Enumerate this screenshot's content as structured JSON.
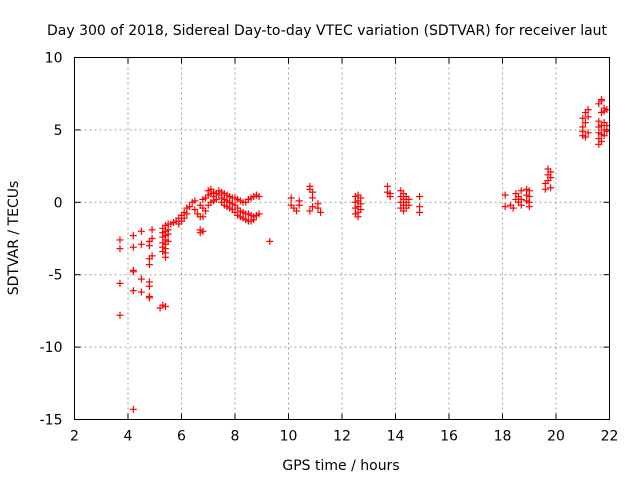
{
  "chart_data": {
    "type": "scatter",
    "title": "Day 300 of 2018, Sidereal Day-to-day VTEC variation (SDTVAR) for receiver laut",
    "xlabel": "GPS time / hours",
    "ylabel": "SDTVAR / TECUs",
    "xlim": [
      2,
      22
    ],
    "ylim": [
      -15,
      10
    ],
    "x_ticks": [
      2,
      4,
      6,
      8,
      10,
      12,
      14,
      16,
      18,
      20,
      22
    ],
    "y_ticks": [
      -15,
      -10,
      -5,
      0,
      5,
      10
    ],
    "x_tick_labels": [
      "2",
      "4",
      "6",
      "8",
      "10",
      "12",
      "14",
      "16",
      "18",
      "20",
      "22"
    ],
    "y_tick_labels": [
      "-15",
      "-10",
      "-5",
      "0",
      "5",
      "10"
    ],
    "grid": true,
    "marker": "+",
    "color": "#ff0000",
    "series": [
      {
        "name": "SDTVAR",
        "points": [
          [
            3.7,
            -2.6
          ],
          [
            3.7,
            -3.2
          ],
          [
            3.7,
            -5.6
          ],
          [
            3.7,
            -7.8
          ],
          [
            4.2,
            -2.3
          ],
          [
            4.2,
            -3.1
          ],
          [
            4.2,
            -4.7
          ],
          [
            4.2,
            -4.8
          ],
          [
            4.2,
            -6.1
          ],
          [
            4.2,
            -14.3
          ],
          [
            4.5,
            -2.0
          ],
          [
            4.5,
            -2.9
          ],
          [
            4.5,
            -5.3
          ],
          [
            4.5,
            -6.2
          ],
          [
            4.8,
            -2.7
          ],
          [
            4.8,
            -3.0
          ],
          [
            4.8,
            -3.9
          ],
          [
            4.8,
            -4.3
          ],
          [
            4.8,
            -5.5
          ],
          [
            4.8,
            -5.8
          ],
          [
            4.8,
            -6.5
          ],
          [
            4.8,
            -6.6
          ],
          [
            4.9,
            -1.9
          ],
          [
            4.9,
            -2.5
          ],
          [
            4.9,
            -3.7
          ],
          [
            5.2,
            -7.3
          ],
          [
            5.3,
            -7.1
          ],
          [
            5.4,
            -7.2
          ],
          [
            5.3,
            -1.8
          ],
          [
            5.3,
            -2.1
          ],
          [
            5.3,
            -2.4
          ],
          [
            5.3,
            -2.8
          ],
          [
            5.3,
            -3.1
          ],
          [
            5.3,
            -3.4
          ],
          [
            5.4,
            -1.6
          ],
          [
            5.4,
            -2.0
          ],
          [
            5.4,
            -2.3
          ],
          [
            5.4,
            -2.6
          ],
          [
            5.4,
            -2.9
          ],
          [
            5.4,
            -3.2
          ],
          [
            5.4,
            -3.5
          ],
          [
            5.4,
            -3.8
          ],
          [
            5.5,
            -1.5
          ],
          [
            5.5,
            -1.9
          ],
          [
            5.5,
            -2.2
          ],
          [
            5.5,
            -2.7
          ],
          [
            5.6,
            -1.5
          ],
          [
            5.7,
            -1.4
          ],
          [
            5.8,
            -1.3
          ],
          [
            5.9,
            -1.1
          ],
          [
            5.9,
            -1.5
          ],
          [
            6.0,
            -0.9
          ],
          [
            6.0,
            -1.3
          ],
          [
            6.1,
            -0.7
          ],
          [
            6.1,
            -1.1
          ],
          [
            6.2,
            -0.4
          ],
          [
            6.2,
            -0.8
          ],
          [
            6.3,
            -0.3
          ],
          [
            6.4,
            0.0
          ],
          [
            6.5,
            0.1
          ],
          [
            6.7,
            -1.9
          ],
          [
            6.7,
            -2.1
          ],
          [
            6.8,
            -2.0
          ],
          [
            6.7,
            -0.2
          ],
          [
            6.8,
            -0.4
          ],
          [
            6.9,
            -0.6
          ],
          [
            6.8,
            0.2
          ],
          [
            6.9,
            0.3
          ],
          [
            7.0,
            0.5
          ],
          [
            7.0,
            0.8
          ],
          [
            7.1,
            0.6
          ],
          [
            7.1,
            0.9
          ],
          [
            7.2,
            0.7
          ],
          [
            7.2,
            0.4
          ],
          [
            7.3,
            0.6
          ],
          [
            7.3,
            0.2
          ],
          [
            7.4,
            0.5
          ],
          [
            7.4,
            0.8
          ],
          [
            7.5,
            0.7
          ],
          [
            7.5,
            0.3
          ],
          [
            7.5,
            0.0
          ],
          [
            7.6,
            0.6
          ],
          [
            7.6,
            0.2
          ],
          [
            7.6,
            -0.2
          ],
          [
            7.7,
            0.5
          ],
          [
            7.7,
            0.1
          ],
          [
            7.7,
            -0.3
          ],
          [
            7.8,
            0.4
          ],
          [
            7.8,
            0.0
          ],
          [
            7.8,
            -0.4
          ],
          [
            7.9,
            0.3
          ],
          [
            7.9,
            -0.1
          ],
          [
            7.9,
            -0.5
          ],
          [
            8.0,
            0.3
          ],
          [
            8.0,
            -0.2
          ],
          [
            8.0,
            -0.7
          ],
          [
            8.1,
            0.2
          ],
          [
            8.1,
            -0.4
          ],
          [
            8.1,
            -0.9
          ],
          [
            8.2,
            0.1
          ],
          [
            8.2,
            -0.6
          ],
          [
            8.2,
            -1.0
          ],
          [
            8.3,
            0.0
          ],
          [
            8.3,
            -0.7
          ],
          [
            8.3,
            -1.1
          ],
          [
            8.4,
            0.0
          ],
          [
            8.4,
            -0.8
          ],
          [
            8.4,
            -1.2
          ],
          [
            8.5,
            0.2
          ],
          [
            8.5,
            -0.8
          ],
          [
            8.5,
            -1.3
          ],
          [
            8.6,
            0.3
          ],
          [
            8.6,
            -0.9
          ],
          [
            8.6,
            -1.3
          ],
          [
            8.7,
            0.4
          ],
          [
            8.7,
            -1.0
          ],
          [
            8.7,
            -1.2
          ],
          [
            8.8,
            0.5
          ],
          [
            8.8,
            -0.9
          ],
          [
            8.9,
            0.4
          ],
          [
            8.9,
            -0.8
          ],
          [
            6.5,
            -0.5
          ],
          [
            6.6,
            -0.8
          ],
          [
            6.7,
            -1.0
          ],
          [
            6.8,
            -1.0
          ],
          [
            7.0,
            -0.2
          ],
          [
            7.1,
            0.0
          ],
          [
            7.2,
            0.1
          ],
          [
            9.3,
            -2.7
          ],
          [
            10.1,
            0.3
          ],
          [
            10.1,
            -0.2
          ],
          [
            10.2,
            -0.4
          ],
          [
            10.3,
            -0.6
          ],
          [
            10.4,
            -0.2
          ],
          [
            10.4,
            0.1
          ],
          [
            10.8,
            1.1
          ],
          [
            10.8,
            0.9
          ],
          [
            10.9,
            0.7
          ],
          [
            10.9,
            0.3
          ],
          [
            10.9,
            -0.3
          ],
          [
            10.8,
            -0.6
          ],
          [
            11.1,
            -0.1
          ],
          [
            11.1,
            -0.4
          ],
          [
            11.2,
            -0.7
          ],
          [
            12.5,
            0.4
          ],
          [
            12.5,
            0.0
          ],
          [
            12.5,
            -0.4
          ],
          [
            12.5,
            -0.8
          ],
          [
            12.6,
            0.5
          ],
          [
            12.6,
            0.1
          ],
          [
            12.6,
            -0.3
          ],
          [
            12.6,
            -0.7
          ],
          [
            12.6,
            -1.0
          ],
          [
            12.7,
            0.3
          ],
          [
            12.7,
            -0.1
          ],
          [
            12.7,
            -0.5
          ],
          [
            13.7,
            0.7
          ],
          [
            13.7,
            1.1
          ],
          [
            13.8,
            0.4
          ],
          [
            13.8,
            0.6
          ],
          [
            14.2,
            0.8
          ],
          [
            14.2,
            0.4
          ],
          [
            14.2,
            0.0
          ],
          [
            14.2,
            -0.4
          ],
          [
            14.3,
            0.6
          ],
          [
            14.3,
            0.2
          ],
          [
            14.3,
            -0.2
          ],
          [
            14.3,
            -0.6
          ],
          [
            14.4,
            0.4
          ],
          [
            14.4,
            0.0
          ],
          [
            14.4,
            -0.4
          ],
          [
            14.5,
            0.2
          ],
          [
            14.5,
            -0.2
          ],
          [
            14.9,
            0.4
          ],
          [
            14.9,
            -0.3
          ],
          [
            14.9,
            -0.7
          ],
          [
            18.1,
            0.5
          ],
          [
            18.1,
            -0.3
          ],
          [
            18.3,
            -0.2
          ],
          [
            18.4,
            -0.4
          ],
          [
            18.5,
            0.6
          ],
          [
            18.5,
            0.2
          ],
          [
            18.6,
            0.4
          ],
          [
            18.6,
            0.0
          ],
          [
            18.7,
            0.8
          ],
          [
            18.7,
            0.2
          ],
          [
            18.7,
            -0.2
          ],
          [
            18.9,
            0.9
          ],
          [
            18.9,
            0.5
          ],
          [
            18.9,
            0.1
          ],
          [
            19.0,
            0.8
          ],
          [
            19.0,
            0.4
          ],
          [
            19.0,
            0.0
          ],
          [
            19.0,
            -0.3
          ],
          [
            19.6,
            0.9
          ],
          [
            19.6,
            1.3
          ],
          [
            19.7,
            1.5
          ],
          [
            19.7,
            1.9
          ],
          [
            19.7,
            2.3
          ],
          [
            19.8,
            1.7
          ],
          [
            19.8,
            2.1
          ],
          [
            19.8,
            1.0
          ],
          [
            21.0,
            4.6
          ],
          [
            21.0,
            5.2
          ],
          [
            21.0,
            5.8
          ],
          [
            21.0,
            4.9
          ],
          [
            21.1,
            4.5
          ],
          [
            21.1,
            5.5
          ],
          [
            21.1,
            6.2
          ],
          [
            21.2,
            4.8
          ],
          [
            21.2,
            5.9
          ],
          [
            21.2,
            6.4
          ],
          [
            21.6,
            4.0
          ],
          [
            21.6,
            4.4
          ],
          [
            21.6,
            4.8
          ],
          [
            21.6,
            5.2
          ],
          [
            21.6,
            5.6
          ],
          [
            21.6,
            6.8
          ],
          [
            21.7,
            4.2
          ],
          [
            21.7,
            4.7
          ],
          [
            21.7,
            5.3
          ],
          [
            21.7,
            6.2
          ],
          [
            21.7,
            7.0
          ],
          [
            21.7,
            7.1
          ],
          [
            21.8,
            4.6
          ],
          [
            21.8,
            5.0
          ],
          [
            21.8,
            5.5
          ],
          [
            21.8,
            6.3
          ],
          [
            21.8,
            6.5
          ],
          [
            21.9,
            4.9
          ],
          [
            21.9,
            5.3
          ],
          [
            21.9,
            6.4
          ]
        ]
      }
    ]
  }
}
